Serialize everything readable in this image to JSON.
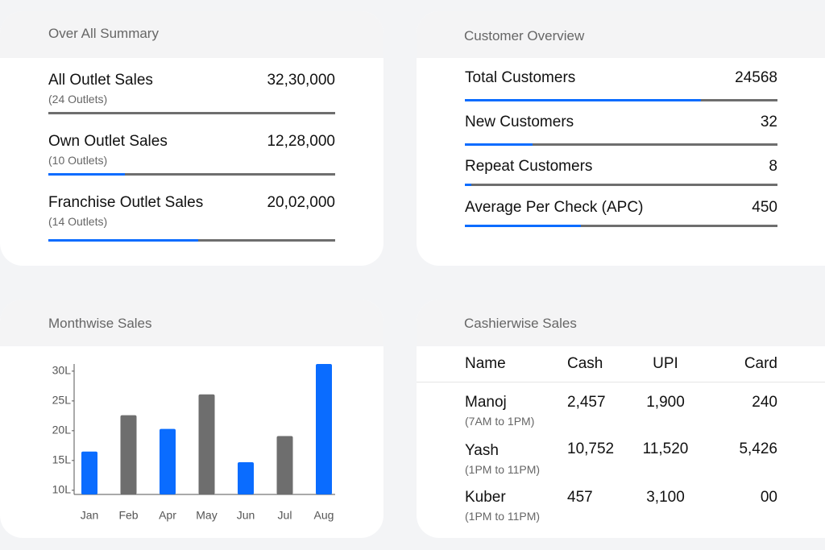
{
  "summary": {
    "title": "Over All Summary",
    "rows": [
      {
        "label": "All Outlet Sales",
        "sub": "(24 Outlets)",
        "value": "32,30,000"
      },
      {
        "label": "Own Outlet Sales",
        "sub": "(10 Outlets)",
        "value": "12,28,000"
      },
      {
        "label": "Franchise Outlet Sales",
        "sub": "(14 Outlets)",
        "value": "20,02,000"
      }
    ]
  },
  "customers": {
    "title": "Customer Overview",
    "rows": [
      {
        "label": "Total Customers",
        "value": "24568"
      },
      {
        "label": "New Customers",
        "value": "32"
      },
      {
        "label": "Repeat Customers",
        "value": "8"
      },
      {
        "label": "Average Per Check (APC)",
        "value": "450"
      }
    ]
  },
  "chart_data": {
    "type": "bar",
    "title": "Monthwise Sales",
    "categories": [
      "Jan",
      "Feb",
      "Apr",
      "May",
      "Jun",
      "Jul",
      "Aug"
    ],
    "values": [
      16.5,
      22.6,
      20.3,
      26.1,
      14.7,
      19.1,
      31.2
    ],
    "colors": [
      "#0a6cff",
      "#6e6e6e",
      "#0a6cff",
      "#6e6e6e",
      "#0a6cff",
      "#6e6e6e",
      "#0a6cff"
    ],
    "ylim": [
      9.3,
      31.2
    ],
    "yticks": [
      {
        "value": 10,
        "label": "10L"
      },
      {
        "value": 15,
        "label": "15L"
      },
      {
        "value": 20,
        "label": "20L"
      },
      {
        "value": 25,
        "label": "25L"
      },
      {
        "value": 30,
        "label": "30L"
      }
    ],
    "grid": false
  },
  "cashier": {
    "title": "Cashierwise Sales",
    "columns": [
      "Name",
      "Cash",
      "UPI",
      "Card"
    ],
    "rows": [
      {
        "name": "Manoj",
        "shift": "(7AM to 1PM)",
        "cash": "2,457",
        "upi": "1,900",
        "card": "240"
      },
      {
        "name": "Yash",
        "shift": "(1PM to 11PM)",
        "cash": "10,752",
        "upi": "11,520",
        "card": "5,426"
      },
      {
        "name": "Kuber",
        "shift": "(1PM to 11PM)",
        "cash": "457",
        "upi": "3,100",
        "card": "00"
      }
    ]
  }
}
